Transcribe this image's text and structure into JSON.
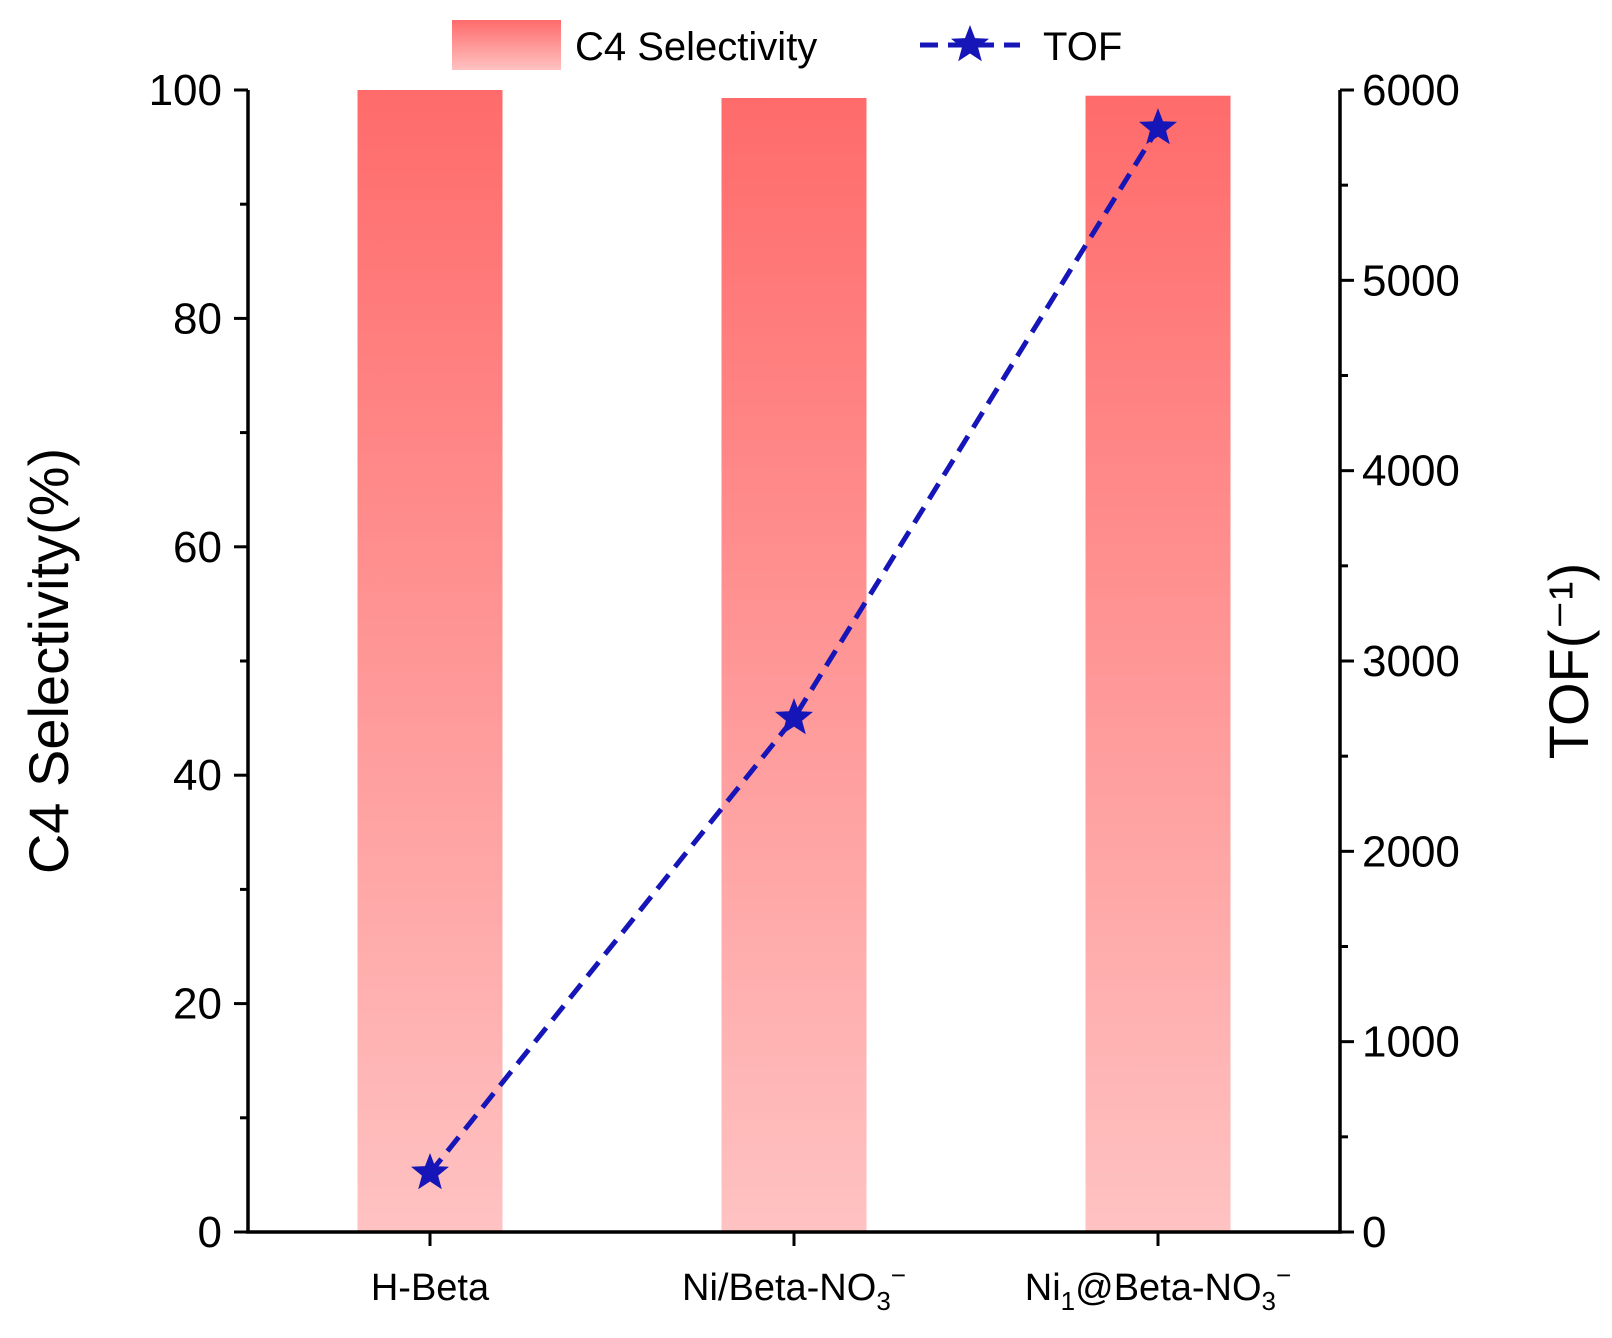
{
  "chart_data": {
    "type": "bar",
    "categories": [
      {
        "label": "H-Beta",
        "base": "H-Beta",
        "sub": "",
        "tail": "",
        "sup": ""
      },
      {
        "label": "Ni/Beta-NO3⁻",
        "base": "Ni/Beta-NO",
        "sub": "3",
        "tail": "",
        "sup": "−"
      },
      {
        "label": "Ni1@Beta-NO3⁻",
        "base": "Ni",
        "sub": "1",
        "tail": "@Beta-NO",
        "sub2": "3",
        "sup": "−"
      }
    ],
    "series": [
      {
        "name": "C4 Selectivity",
        "type": "bar",
        "axis": "left",
        "values": [
          100,
          99.3,
          99.5
        ],
        "color_top": "#ff6b6b",
        "color_bottom": "#ffc2c2"
      },
      {
        "name": "TOF",
        "type": "line",
        "axis": "right",
        "values": [
          310,
          2700,
          5800
        ],
        "color": "#1515b8",
        "marker": "star",
        "line_style": "dashed"
      }
    ],
    "ylabel": "C4 Selectivity(%)",
    "y2label": "TOF(⁻¹)",
    "ylim": [
      0,
      100
    ],
    "y2lim": [
      0,
      6000
    ],
    "yticks": [
      "0",
      "20",
      "40",
      "60",
      "80",
      "100"
    ],
    "y2ticks": [
      "0",
      "1000",
      "2000",
      "3000",
      "4000",
      "5000",
      "6000"
    ],
    "legend_position": "top-center"
  }
}
